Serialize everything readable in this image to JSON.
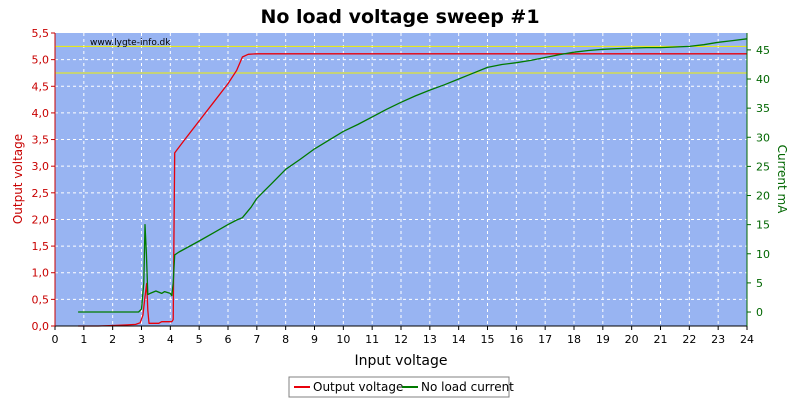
{
  "chart_data": {
    "type": "line",
    "title": "No load voltage sweep #1",
    "watermark": "www.lygte-info.dk",
    "xlabel": "Input voltage",
    "ylabel_left": "Output voltage",
    "ylabel_right": "Current mA",
    "xlim": [
      0,
      24
    ],
    "ylim_left": [
      0,
      5.5
    ],
    "ylim_right": [
      -2.4,
      47.9
    ],
    "x_ticks": [
      "0",
      "1",
      "2",
      "3",
      "4",
      "5",
      "6",
      "7",
      "8",
      "9",
      "10",
      "11",
      "12",
      "13",
      "14",
      "15",
      "16",
      "17",
      "18",
      "19",
      "20",
      "21",
      "22",
      "23",
      "24"
    ],
    "y_left_ticks": [
      "0,0",
      "0,5",
      "1,0",
      "1,5",
      "2,0",
      "2,5",
      "3,0",
      "3,5",
      "4,0",
      "4,5",
      "5,0",
      "5,5"
    ],
    "y_right_ticks": [
      "0",
      "5",
      "10",
      "15",
      "20",
      "25",
      "30",
      "35",
      "40",
      "45"
    ],
    "grid": true,
    "legend_position": "bottom-center",
    "colors": {
      "plot_bg": "#98b4f2",
      "grid": "#ffffff",
      "voltage": "#e8000b",
      "current": "#007a00",
      "ref_lines": "#f0f000",
      "left_axis": "#c80000",
      "right_axis": "#006600"
    },
    "reference_lines_left": [
      5.25,
      4.75
    ],
    "series": [
      {
        "name": "Output voltage",
        "axis": "left",
        "points": [
          [
            0.8,
            0.0
          ],
          [
            1.5,
            0.0
          ],
          [
            2.0,
            0.01
          ],
          [
            2.5,
            0.02
          ],
          [
            2.8,
            0.03
          ],
          [
            2.95,
            0.06
          ],
          [
            3.05,
            0.2
          ],
          [
            3.12,
            0.55
          ],
          [
            3.18,
            0.8
          ],
          [
            3.22,
            0.3
          ],
          [
            3.26,
            0.05
          ],
          [
            3.5,
            0.05
          ],
          [
            3.6,
            0.05
          ],
          [
            3.7,
            0.08
          ],
          [
            4.05,
            0.08
          ],
          [
            4.1,
            0.12
          ],
          [
            4.15,
            3.25
          ],
          [
            4.5,
            3.5
          ],
          [
            5.0,
            3.85
          ],
          [
            5.5,
            4.2
          ],
          [
            6.0,
            4.55
          ],
          [
            6.3,
            4.8
          ],
          [
            6.5,
            5.05
          ],
          [
            6.7,
            5.1
          ],
          [
            7.0,
            5.11
          ],
          [
            10,
            5.11
          ],
          [
            15,
            5.11
          ],
          [
            20,
            5.11
          ],
          [
            24,
            5.11
          ]
        ]
      },
      {
        "name": "No load current",
        "axis": "right",
        "points": [
          [
            0.8,
            0.0
          ],
          [
            1.5,
            0.0
          ],
          [
            2.0,
            0.0
          ],
          [
            2.5,
            0.0
          ],
          [
            2.9,
            0.0
          ],
          [
            3.0,
            0.5
          ],
          [
            3.08,
            5.0
          ],
          [
            3.12,
            15.0
          ],
          [
            3.17,
            10.0
          ],
          [
            3.22,
            3.0
          ],
          [
            3.3,
            3.2
          ],
          [
            3.5,
            3.6
          ],
          [
            3.7,
            3.2
          ],
          [
            3.8,
            3.5
          ],
          [
            4.0,
            3.2
          ],
          [
            4.05,
            2.8
          ],
          [
            4.1,
            5.0
          ],
          [
            4.15,
            9.8
          ],
          [
            4.3,
            10.3
          ],
          [
            5.0,
            12.2
          ],
          [
            5.5,
            13.6
          ],
          [
            6.0,
            15.0
          ],
          [
            6.3,
            15.8
          ],
          [
            6.5,
            16.2
          ],
          [
            6.8,
            18.0
          ],
          [
            7.0,
            19.5
          ],
          [
            7.2,
            20.5
          ],
          [
            7.5,
            22.0
          ],
          [
            8.0,
            24.5
          ],
          [
            8.5,
            26.2
          ],
          [
            9.0,
            28.0
          ],
          [
            9.5,
            29.5
          ],
          [
            10.0,
            31.0
          ],
          [
            10.5,
            32.2
          ],
          [
            11.0,
            33.5
          ],
          [
            11.5,
            34.8
          ],
          [
            12.0,
            36.0
          ],
          [
            12.5,
            37.1
          ],
          [
            13.0,
            38.1
          ],
          [
            13.5,
            39.0
          ],
          [
            14.0,
            40.0
          ],
          [
            14.5,
            41.0
          ],
          [
            15.0,
            42.0
          ],
          [
            15.5,
            42.5
          ],
          [
            16.0,
            42.8
          ],
          [
            16.5,
            43.2
          ],
          [
            17.0,
            43.7
          ],
          [
            17.5,
            44.2
          ],
          [
            18.0,
            44.6
          ],
          [
            18.5,
            44.9
          ],
          [
            19.0,
            45.1
          ],
          [
            19.5,
            45.2
          ],
          [
            20.0,
            45.3
          ],
          [
            20.5,
            45.4
          ],
          [
            21.0,
            45.4
          ],
          [
            21.5,
            45.5
          ],
          [
            22.0,
            45.6
          ],
          [
            22.5,
            45.9
          ],
          [
            23.0,
            46.3
          ],
          [
            23.5,
            46.6
          ],
          [
            24.0,
            46.9
          ]
        ]
      }
    ]
  }
}
